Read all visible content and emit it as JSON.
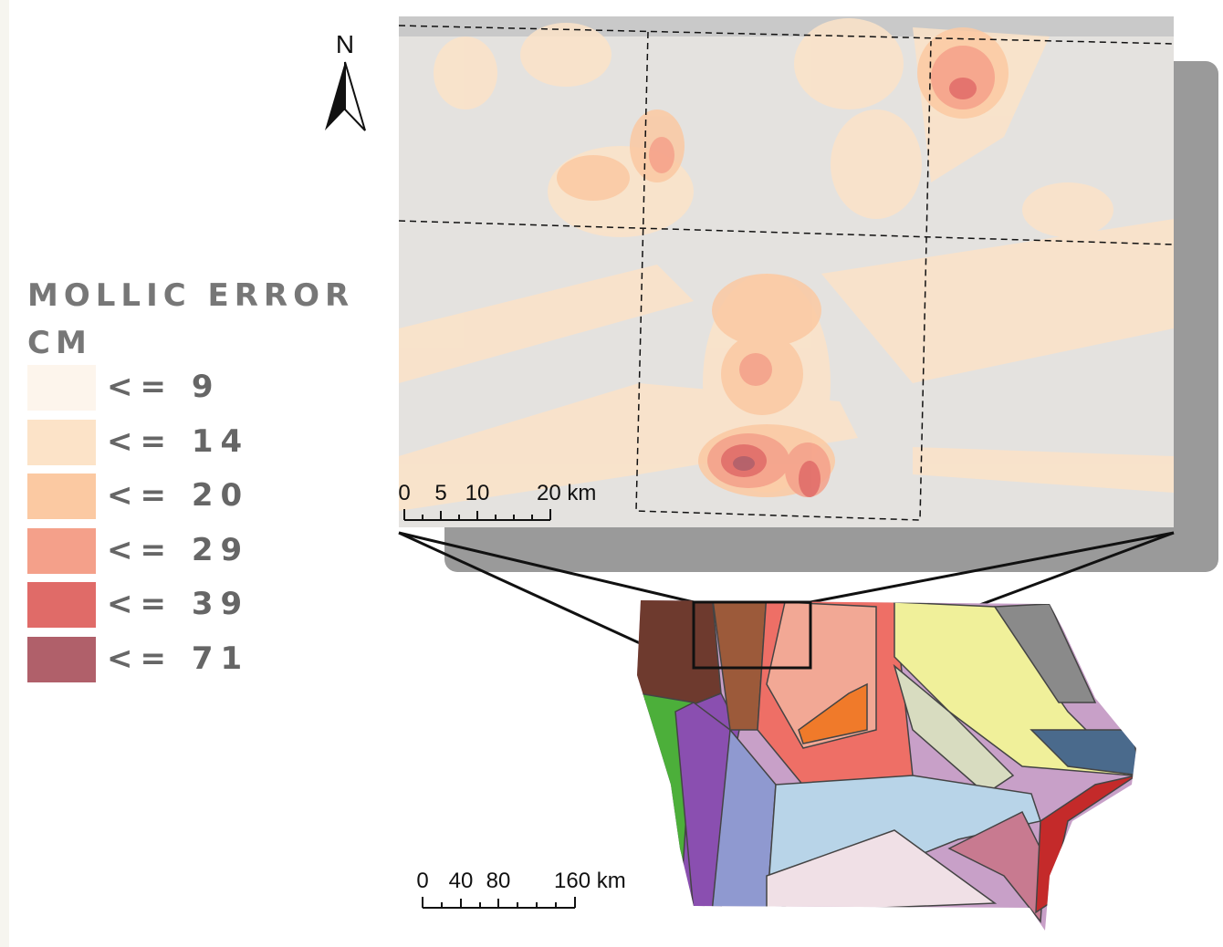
{
  "north_arrow": "N",
  "legend": {
    "title": "MOLLIC ERROR CM",
    "items": [
      {
        "label": "<= 9",
        "color": "#fdf5ec"
      },
      {
        "label": "<= 14",
        "color": "#fce3c8"
      },
      {
        "label": "<= 20",
        "color": "#fbc9a2"
      },
      {
        "label": "<= 29",
        "color": "#f4a08a"
      },
      {
        "label": "<= 39",
        "color": "#e06b68"
      },
      {
        "label": "<= 71",
        "color": "#b0606a"
      }
    ]
  },
  "inset_scale": {
    "labels": [
      "0",
      "5",
      "10",
      "20 km"
    ]
  },
  "state_scale": {
    "labels": [
      "0",
      "40",
      "80",
      "160 km"
    ]
  }
}
